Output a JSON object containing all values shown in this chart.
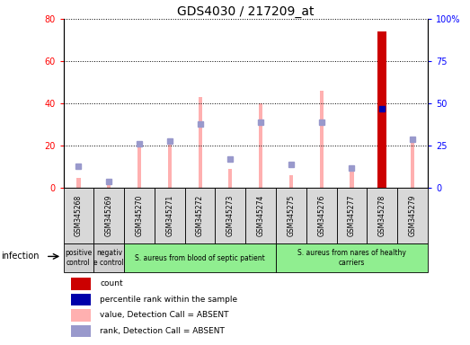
{
  "title": "GDS4030 / 217209_at",
  "samples": [
    "GSM345268",
    "GSM345269",
    "GSM345270",
    "GSM345271",
    "GSM345272",
    "GSM345273",
    "GSM345274",
    "GSM345275",
    "GSM345276",
    "GSM345277",
    "GSM345278",
    "GSM345279"
  ],
  "value_absent": [
    5,
    3,
    20,
    23,
    43,
    9,
    40,
    6,
    46,
    10,
    74,
    24
  ],
  "rank_absent": [
    13,
    4,
    26,
    28,
    38,
    17,
    39,
    14,
    39,
    12,
    47,
    29
  ],
  "count": [
    0,
    0,
    0,
    0,
    0,
    0,
    0,
    0,
    0,
    0,
    74,
    0
  ],
  "percentile_rank": [
    0,
    0,
    0,
    0,
    0,
    0,
    0,
    0,
    0,
    0,
    47,
    0
  ],
  "ylim_left": [
    0,
    80
  ],
  "ylim_right": [
    0,
    100
  ],
  "yticks_left": [
    0,
    20,
    40,
    60,
    80
  ],
  "yticks_right": [
    0,
    25,
    50,
    75,
    100
  ],
  "ytick_labels_left": [
    "0",
    "20",
    "40",
    "60",
    "80"
  ],
  "ytick_labels_right": [
    "0",
    "25",
    "50",
    "75",
    "100%"
  ],
  "group_labels": [
    "positive\ncontrol",
    "negativ\ne control",
    "S. aureus from blood of septic patient",
    "S. aureus from nares of healthy\ncarriers"
  ],
  "group_ranges": [
    [
      0,
      1
    ],
    [
      1,
      2
    ],
    [
      2,
      7
    ],
    [
      7,
      12
    ]
  ],
  "group_colors": [
    "#d0d0d0",
    "#d0d0d0",
    "#90ee90",
    "#90ee90"
  ],
  "infection_label": "infection",
  "legend_labels": [
    "count",
    "percentile rank within the sample",
    "value, Detection Call = ABSENT",
    "rank, Detection Call = ABSENT"
  ],
  "bar_width": 0.12,
  "value_color": "#ffb0b0",
  "rank_color": "#9999cc",
  "count_color": "#cc0000",
  "percentile_color": "#0000aa",
  "grid_color": "#000000",
  "bg_color": "#ffffff",
  "title_fontsize": 10,
  "tick_fontsize": 7,
  "marker_size": 5
}
